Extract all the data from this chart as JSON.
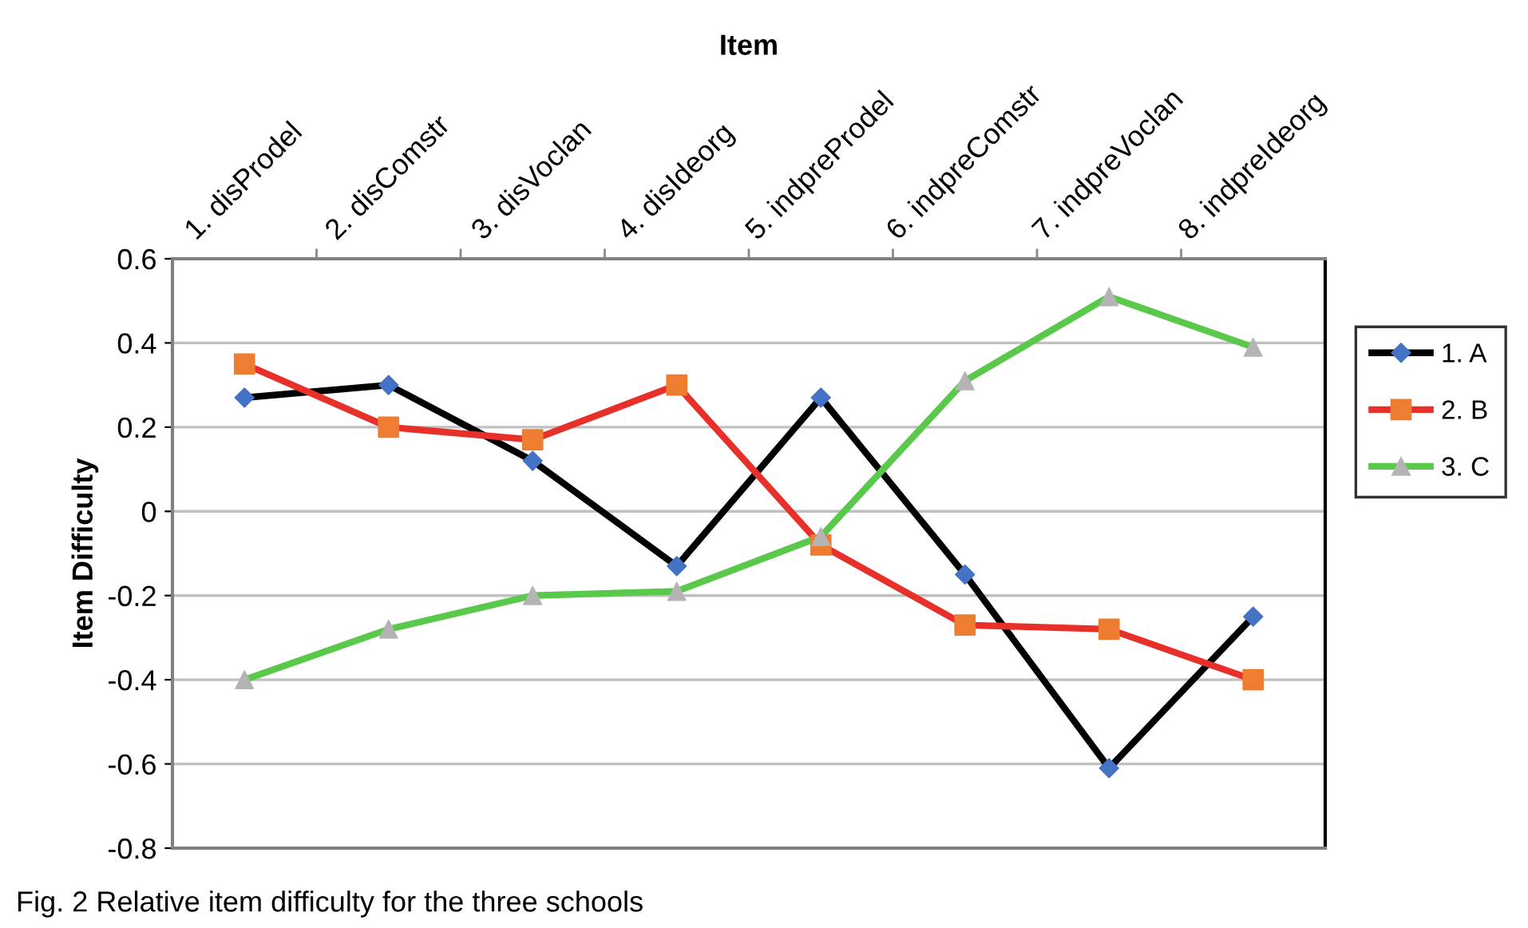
{
  "chart_data": {
    "type": "line",
    "xlabel": "Item",
    "ylabel": "Item Difficulty",
    "categories": [
      "1. disProdel",
      "2. disComstr",
      "3. disVoclan",
      "4. disIdeorg",
      "5. indpreProdel",
      "6. indpreComstr",
      "7. indpreVoclan",
      "8. indpreIdeorg"
    ],
    "series": [
      {
        "name": "1. A",
        "color": "#000000",
        "marker": "diamond",
        "colors": [
          "#4472c4",
          "#4472c4",
          "#4472c4",
          "#4472c4",
          "#4472c4",
          "#4472c4",
          "#4472c4",
          "#4472c4"
        ],
        "values": [
          0.27,
          0.3,
          0.12,
          -0.13,
          0.27,
          -0.15,
          -0.61,
          -0.25
        ]
      },
      {
        "name": "2. B",
        "color": "#e8302a",
        "marker": "square",
        "colors": [
          "#ed7d31",
          "#ed7d31",
          "#ed7d31",
          "#ed7d31",
          "#ed7d31",
          "#ed7d31",
          "#ed7d31",
          "#ed7d31"
        ],
        "values": [
          0.35,
          0.2,
          0.17,
          0.3,
          -0.08,
          -0.27,
          -0.28,
          -0.4
        ]
      },
      {
        "name": "3. C",
        "color": "#5ac84a",
        "marker": "triangle",
        "colors": [
          "#b4b4b4",
          "#b4b4b4",
          "#b4b4b4",
          "#b4b4b4",
          "#b4b4b4",
          "#b4b4b4",
          "#b4b4b4",
          "#b4b4b4"
        ],
        "values": [
          -0.4,
          -0.28,
          -0.2,
          -0.19,
          -0.06,
          0.31,
          0.51,
          0.39
        ]
      }
    ],
    "ylim": [
      -0.8,
      0.6
    ],
    "yticks": [
      {
        "value": -0.8,
        "label": "-0.8"
      },
      {
        "value": -0.6,
        "label": "-0.6"
      },
      {
        "value": -0.4,
        "label": "-0.4"
      },
      {
        "value": -0.2,
        "label": "-0.2"
      },
      0,
      0.2,
      0.4,
      0.6
    ],
    "grid": "y",
    "legend": "right",
    "annotations": [
      "Fig. 2 Relative item difficulty for the three schools"
    ]
  }
}
